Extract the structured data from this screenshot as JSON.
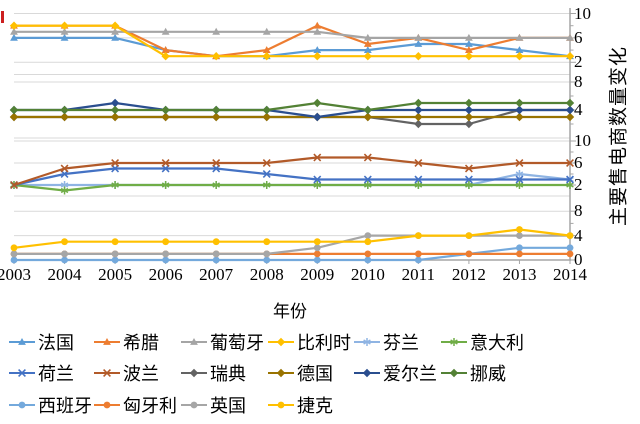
{
  "chart_data": {
    "type": "line",
    "title": "",
    "xlabel": "年份",
    "ylabel": "主要售电商数量变化",
    "x": [
      "2003",
      "2004",
      "2005",
      "2006",
      "2007",
      "2008",
      "2009",
      "2010",
      "2011",
      "2012",
      "2013",
      "2014"
    ],
    "grid": "horizontal-light",
    "legend_position": "bottom",
    "panels": [
      {
        "ticks": [
          2,
          6,
          10
        ],
        "minor": [
          4,
          8
        ]
      },
      {
        "ticks": [
          4,
          8
        ],
        "minor": [
          2,
          6
        ]
      },
      {
        "ticks": [
          2,
          6,
          10
        ],
        "minor": [
          4,
          8
        ]
      },
      {
        "ticks": [
          0,
          4,
          8
        ],
        "minor": [
          2,
          6
        ]
      }
    ],
    "series": [
      {
        "name": "法国",
        "en": "france",
        "panel": 0,
        "marker": "triangle",
        "color": "#5B9BD5",
        "values": [
          6,
          6,
          6,
          4,
          3,
          3,
          4,
          4,
          5,
          5,
          4,
          3
        ]
      },
      {
        "name": "希腊",
        "en": "greece",
        "panel": 0,
        "marker": "triangle",
        "color": "#ED7D31",
        "values": [
          8,
          8,
          8,
          4,
          3,
          4,
          8,
          5,
          6,
          4,
          6,
          6
        ]
      },
      {
        "name": "葡萄牙",
        "en": "portugal",
        "panel": 0,
        "marker": "triangle",
        "color": "#A5A5A5",
        "values": [
          7,
          7,
          7,
          7,
          7,
          7,
          7,
          6,
          6,
          6,
          6,
          6
        ]
      },
      {
        "name": "比利时",
        "en": "belgium",
        "panel": 0,
        "marker": "diamond",
        "color": "#FFC000",
        "values": [
          8,
          8,
          8,
          3,
          3,
          3,
          3,
          3,
          3,
          3,
          3,
          3
        ]
      },
      {
        "name": "芬兰",
        "en": "finland",
        "panel": 2,
        "marker": "star",
        "color": "#8FB4E3",
        "values": [
          2,
          2,
          2,
          2,
          2,
          2,
          2,
          2,
          2,
          2,
          4,
          3
        ]
      },
      {
        "name": "意大利",
        "en": "italy",
        "panel": 2,
        "marker": "star",
        "color": "#70AD47",
        "values": [
          2,
          1,
          2,
          2,
          2,
          2,
          2,
          2,
          2,
          2,
          2,
          2
        ]
      },
      {
        "name": "荷兰",
        "en": "netherlands",
        "panel": 2,
        "marker": "x",
        "color": "#4472C4",
        "values": [
          2,
          4,
          5,
          5,
          5,
          4,
          3,
          3,
          3,
          3,
          3,
          3
        ]
      },
      {
        "name": "波兰",
        "en": "poland",
        "panel": 2,
        "marker": "x",
        "color": "#B25A29",
        "values": [
          2,
          5,
          6,
          6,
          6,
          6,
          7,
          7,
          6,
          5,
          6,
          6
        ]
      },
      {
        "name": "瑞典",
        "en": "sweden",
        "panel": 1,
        "marker": "diamond",
        "color": "#636363",
        "values": [
          3,
          3,
          3,
          3,
          3,
          3,
          3,
          3,
          2,
          2,
          4,
          4
        ]
      },
      {
        "name": "德国",
        "en": "germany",
        "panel": 1,
        "marker": "diamond",
        "color": "#997300",
        "values": [
          3,
          3,
          3,
          3,
          3,
          3,
          3,
          3,
          3,
          3,
          3,
          3
        ]
      },
      {
        "name": "爱尔兰",
        "en": "ireland",
        "panel": 1,
        "marker": "diamond",
        "color": "#2A4E8F",
        "values": [
          4,
          4,
          5,
          4,
          4,
          4,
          3,
          4,
          4,
          4,
          4,
          4
        ]
      },
      {
        "name": "挪威",
        "en": "norway",
        "panel": 1,
        "marker": "diamond",
        "color": "#538135",
        "values": [
          4,
          4,
          4,
          4,
          4,
          4,
          5,
          4,
          5,
          5,
          5,
          5
        ]
      },
      {
        "name": "西班牙",
        "en": "spain",
        "panel": 3,
        "marker": "circle",
        "color": "#74A9DC",
        "values": [
          0,
          0,
          0,
          0,
          0,
          0,
          0,
          0,
          0,
          1,
          2,
          2
        ]
      },
      {
        "name": "匈牙利",
        "en": "hungary",
        "panel": 3,
        "marker": "circle",
        "color": "#ED7D31",
        "values": [
          1,
          1,
          1,
          1,
          1,
          1,
          1,
          1,
          1,
          1,
          1,
          1
        ]
      },
      {
        "name": "英国",
        "en": "uk",
        "panel": 3,
        "marker": "circle",
        "color": "#A6A6A6",
        "values": [
          1,
          1,
          1,
          1,
          1,
          1,
          2,
          4,
          4,
          4,
          4,
          4
        ]
      },
      {
        "name": "捷克",
        "en": "czech",
        "panel": 3,
        "marker": "circle",
        "color": "#FFC000",
        "values": [
          2,
          3,
          3,
          3,
          3,
          3,
          3,
          3,
          4,
          4,
          5,
          4
        ]
      }
    ],
    "colors": {
      "gridline": "#D9D9D9",
      "axis": "#A6A6A6",
      "text": "#000000",
      "clipped_mark": "#CC2020"
    }
  }
}
